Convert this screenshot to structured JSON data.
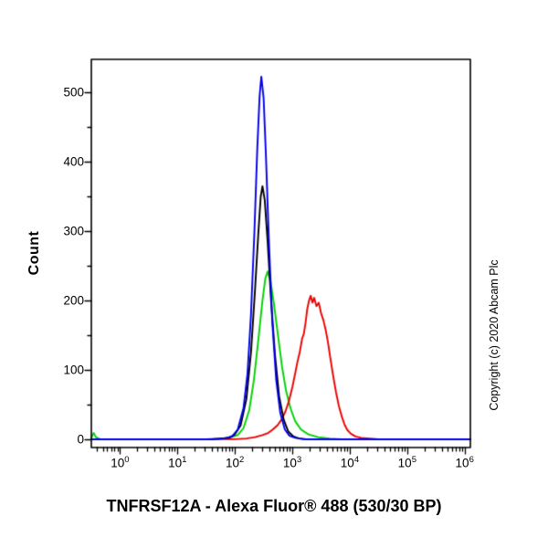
{
  "figure": {
    "title": "TNFRSF12A - Alexa Fluor® 488 (530/30 BP)",
    "ylabel": "Count",
    "copyright": "Copyright (c) 2020 Abcam Plc"
  },
  "chart_data": {
    "type": "line",
    "subtype": "flow-cytometry-histogram",
    "title": "TNFRSF12A - Alexa Fluor® 488 (530/30 BP)",
    "xlabel": "TNFRSF12A - Alexa Fluor® 488 (530/30 BP)",
    "ylabel": "Count",
    "x_scale": "log10",
    "x_range_log10": [
      -0.5,
      6.1
    ],
    "y_range": [
      -12,
      548
    ],
    "x_tick_exponents": [
      0,
      1,
      2,
      3,
      4,
      5,
      6
    ],
    "y_ticks": [
      0,
      100,
      200,
      300,
      400,
      500
    ],
    "y_minor_step": 50,
    "grid": false,
    "legend": "none",
    "frame": true,
    "series": [
      {
        "name": "green-histogram",
        "color": "#00d200",
        "peak": {
          "x_log10": 2.57,
          "count": 242
        },
        "points": [
          [
            -0.5,
            2
          ],
          [
            -0.46,
            9
          ],
          [
            -0.42,
            3
          ],
          [
            -0.35,
            0
          ],
          [
            1.7,
            0
          ],
          [
            1.9,
            2
          ],
          [
            2.05,
            6
          ],
          [
            2.15,
            16
          ],
          [
            2.25,
            42
          ],
          [
            2.33,
            85
          ],
          [
            2.41,
            145
          ],
          [
            2.48,
            200
          ],
          [
            2.53,
            232
          ],
          [
            2.57,
            242
          ],
          [
            2.62,
            228
          ],
          [
            2.68,
            195
          ],
          [
            2.75,
            150
          ],
          [
            2.82,
            105
          ],
          [
            2.89,
            70
          ],
          [
            2.97,
            44
          ],
          [
            3.05,
            26
          ],
          [
            3.15,
            14
          ],
          [
            3.28,
            7
          ],
          [
            3.45,
            3
          ],
          [
            3.65,
            1
          ],
          [
            3.85,
            0
          ],
          [
            6.1,
            0
          ]
        ]
      },
      {
        "name": "red-histogram",
        "color": "#ee0000",
        "peak": {
          "x_log10": 3.32,
          "count": 207
        },
        "points": [
          [
            -0.5,
            0
          ],
          [
            2.0,
            0
          ],
          [
            2.2,
            1
          ],
          [
            2.35,
            3
          ],
          [
            2.48,
            6
          ],
          [
            2.58,
            9
          ],
          [
            2.66,
            14
          ],
          [
            2.74,
            20
          ],
          [
            2.81,
            28
          ],
          [
            2.88,
            40
          ],
          [
            2.94,
            55
          ],
          [
            3.0,
            75
          ],
          [
            3.05,
            95
          ],
          [
            3.09,
            112
          ],
          [
            3.13,
            126
          ],
          [
            3.17,
            145
          ],
          [
            3.2,
            152
          ],
          [
            3.23,
            168
          ],
          [
            3.26,
            188
          ],
          [
            3.29,
            200
          ],
          [
            3.32,
            207
          ],
          [
            3.35,
            197
          ],
          [
            3.38,
            204
          ],
          [
            3.42,
            192
          ],
          [
            3.46,
            197
          ],
          [
            3.5,
            182
          ],
          [
            3.54,
            172
          ],
          [
            3.58,
            158
          ],
          [
            3.62,
            140
          ],
          [
            3.66,
            118
          ],
          [
            3.71,
            92
          ],
          [
            3.76,
            68
          ],
          [
            3.81,
            48
          ],
          [
            3.86,
            33
          ],
          [
            3.91,
            21
          ],
          [
            3.96,
            13
          ],
          [
            4.02,
            8
          ],
          [
            4.1,
            4
          ],
          [
            4.2,
            2
          ],
          [
            4.35,
            1
          ],
          [
            4.5,
            0
          ],
          [
            6.1,
            0
          ]
        ]
      },
      {
        "name": "black-histogram",
        "color": "#000000",
        "peak": {
          "x_log10": 2.48,
          "count": 365
        },
        "points": [
          [
            -0.5,
            0
          ],
          [
            1.6,
            0
          ],
          [
            1.9,
            2
          ],
          [
            2.0,
            7
          ],
          [
            2.1,
            20
          ],
          [
            2.2,
            58
          ],
          [
            2.28,
            125
          ],
          [
            2.35,
            215
          ],
          [
            2.41,
            300
          ],
          [
            2.45,
            350
          ],
          [
            2.48,
            365
          ],
          [
            2.52,
            345
          ],
          [
            2.57,
            285
          ],
          [
            2.63,
            200
          ],
          [
            2.7,
            120
          ],
          [
            2.77,
            62
          ],
          [
            2.85,
            28
          ],
          [
            2.93,
            11
          ],
          [
            3.02,
            4
          ],
          [
            3.12,
            1
          ],
          [
            3.25,
            0
          ],
          [
            6.1,
            0
          ]
        ]
      },
      {
        "name": "blue-histogram",
        "color": "#0000ee",
        "peak": {
          "x_log10": 2.46,
          "count": 523
        },
        "points": [
          [
            -0.5,
            0
          ],
          [
            1.5,
            0
          ],
          [
            1.8,
            1
          ],
          [
            1.95,
            4
          ],
          [
            2.05,
            14
          ],
          [
            2.15,
            45
          ],
          [
            2.22,
            95
          ],
          [
            2.28,
            180
          ],
          [
            2.34,
            300
          ],
          [
            2.39,
            420
          ],
          [
            2.43,
            495
          ],
          [
            2.46,
            523
          ],
          [
            2.5,
            492
          ],
          [
            2.54,
            410
          ],
          [
            2.59,
            290
          ],
          [
            2.65,
            170
          ],
          [
            2.72,
            85
          ],
          [
            2.79,
            38
          ],
          [
            2.87,
            14
          ],
          [
            2.95,
            5
          ],
          [
            3.05,
            2
          ],
          [
            3.2,
            0
          ],
          [
            6.1,
            0
          ]
        ]
      }
    ]
  }
}
